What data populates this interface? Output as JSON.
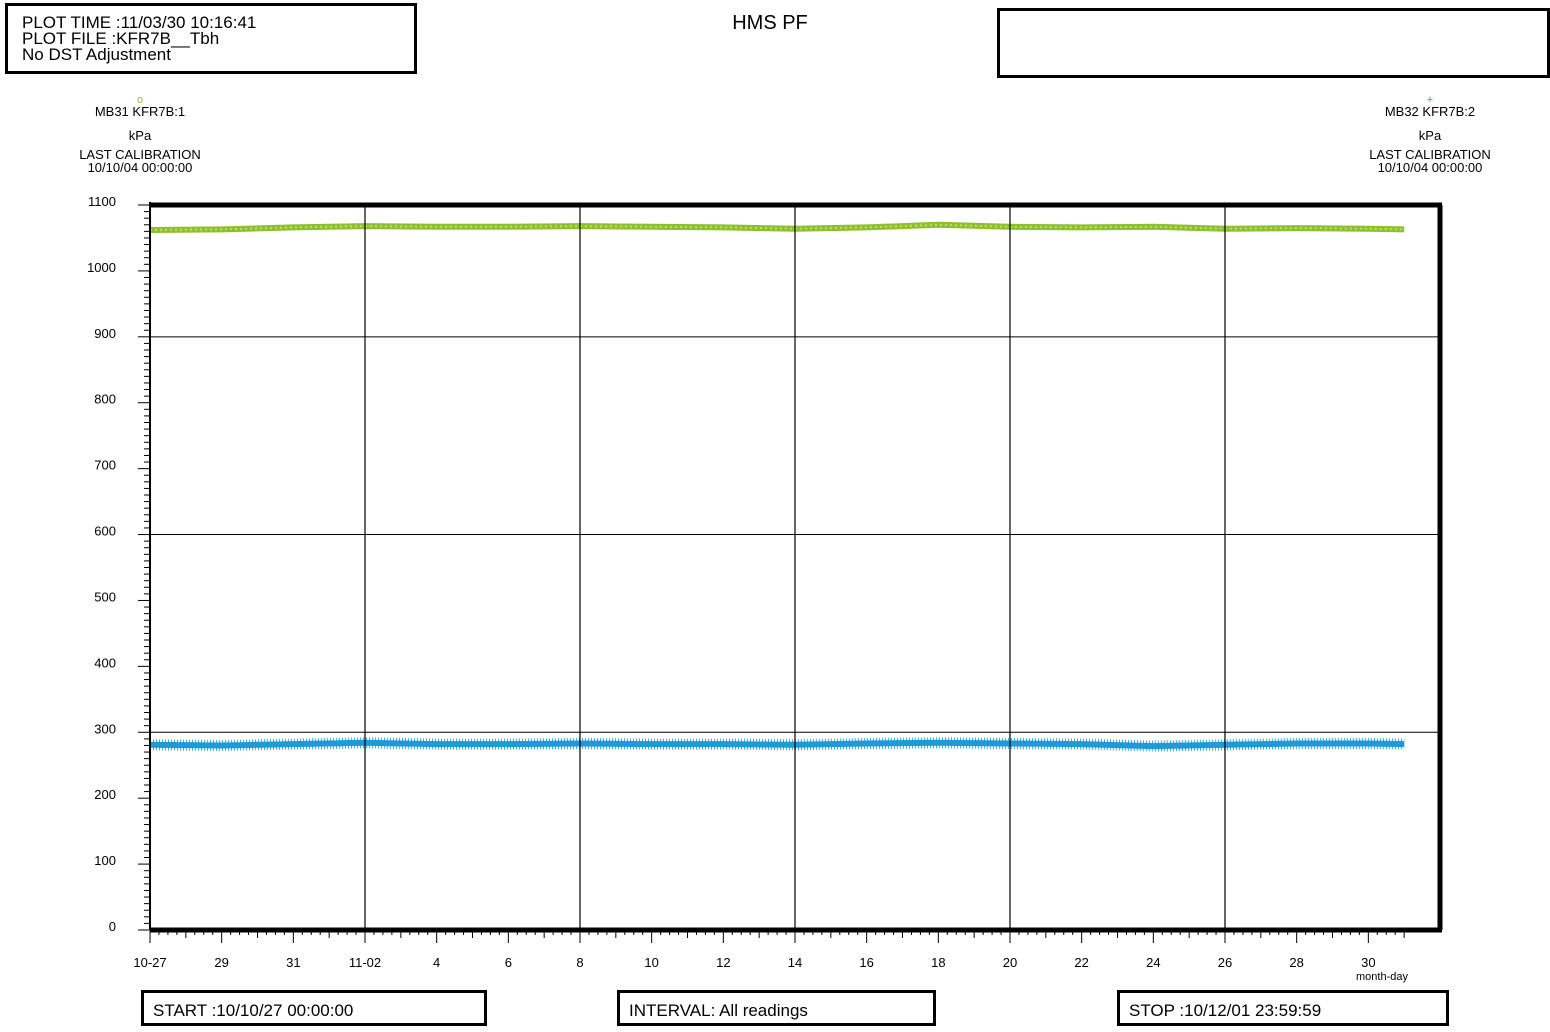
{
  "header": {
    "plot_time": "PLOT TIME :11/03/30 10:16:41",
    "plot_file": "PLOT FILE :KFR7B__Tbh",
    "dst_note": "No DST Adjustment",
    "title": "HMS PF"
  },
  "channels": {
    "left": {
      "marker": "o",
      "name": "MB31  KFR7B:1",
      "unit": "kPa",
      "cal_label": "LAST CALIBRATION",
      "cal_date": "10/10/04 00:00:00",
      "color": "#8dc02c"
    },
    "right": {
      "marker": "+",
      "name": "MB32  KFR7B:2",
      "unit": "kPa",
      "cal_label": "LAST CALIBRATION",
      "cal_date": "10/10/04 00:00:00",
      "color": "#1e9bd7"
    }
  },
  "footer": {
    "start": "START :10/10/27 00:00:00",
    "interval": "INTERVAL: All readings",
    "stop": "STOP :10/12/01 23:59:59"
  },
  "chart_data": {
    "type": "line",
    "xlabel": "month-day",
    "ylabel": "kPa",
    "ylim": [
      0,
      1100
    ],
    "xlim": [
      "2010-10-27",
      "2010-12-01"
    ],
    "y_ticks": [
      0,
      100,
      200,
      300,
      400,
      500,
      600,
      700,
      800,
      900,
      1000,
      1100
    ],
    "x_tick_labels": [
      "10-27",
      "29",
      "31",
      "11-02",
      "4",
      "6",
      "8",
      "10",
      "12",
      "14",
      "16",
      "18",
      "20",
      "22",
      "24",
      "26",
      "28",
      "30"
    ],
    "grid": true,
    "series": [
      {
        "name": "MB31  KFR7B:1",
        "marker": "o",
        "color": "#8dc02c",
        "x": [
          "2010-10-27",
          "2010-10-29",
          "2010-10-31",
          "2010-11-02",
          "2010-11-04",
          "2010-11-06",
          "2010-11-08",
          "2010-11-10",
          "2010-11-12",
          "2010-11-14",
          "2010-11-16",
          "2010-11-18",
          "2010-11-20",
          "2010-11-22",
          "2010-11-24",
          "2010-11-26",
          "2010-11-28",
          "2010-11-30",
          "2010-12-01"
        ],
        "values": [
          1062,
          1063,
          1066,
          1068,
          1067,
          1067,
          1068,
          1067,
          1066,
          1064,
          1066,
          1070,
          1067,
          1066,
          1067,
          1064,
          1065,
          1064,
          1063
        ]
      },
      {
        "name": "MB32  KFR7B:2",
        "marker": "+",
        "color": "#1e9bd7",
        "x": [
          "2010-10-27",
          "2010-10-29",
          "2010-10-31",
          "2010-11-02",
          "2010-11-04",
          "2010-11-06",
          "2010-11-08",
          "2010-11-10",
          "2010-11-12",
          "2010-11-14",
          "2010-11-16",
          "2010-11-18",
          "2010-11-20",
          "2010-11-22",
          "2010-11-24",
          "2010-11-26",
          "2010-11-28",
          "2010-11-30",
          "2010-12-01"
        ],
        "values": [
          281,
          280,
          282,
          284,
          282,
          282,
          283,
          282,
          282,
          281,
          283,
          284,
          283,
          282,
          279,
          281,
          283,
          283,
          282
        ]
      }
    ]
  }
}
